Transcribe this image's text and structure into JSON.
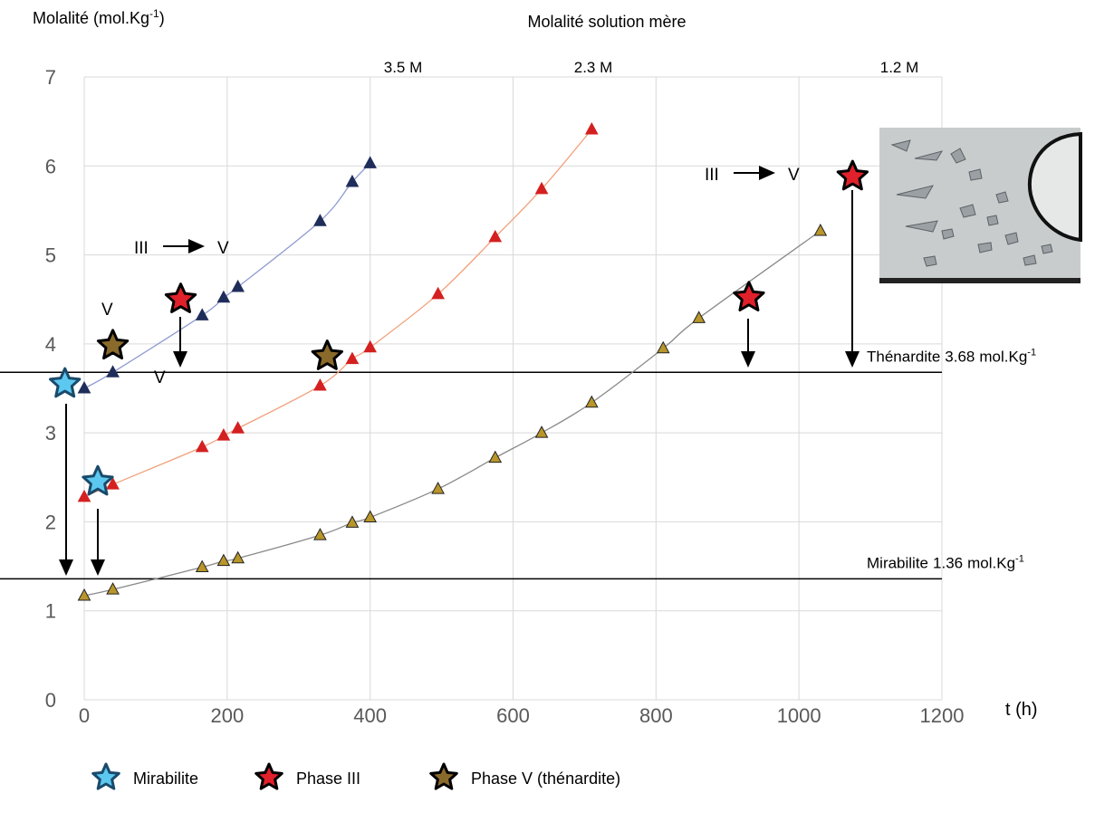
{
  "chart_data": {
    "type": "line",
    "y_label": {
      "text": "Molalité (mol.Kg",
      "sup": "-1",
      "end": ")"
    },
    "x_label": "t (h)",
    "series_title": "Molalité solution mère",
    "xlim": [
      0,
      1200
    ],
    "ylim": [
      0,
      7
    ],
    "xticks": [
      0,
      200,
      400,
      600,
      800,
      1000,
      1200
    ],
    "yticks": [
      0,
      1,
      2,
      3,
      4,
      5,
      6,
      7
    ],
    "grid": true,
    "series": [
      {
        "name": "3.5 M",
        "color": "#1f2d5a",
        "line_color": "#8f9bd0",
        "x": [
          0,
          40,
          165,
          195,
          215,
          330,
          375,
          400
        ],
        "values": [
          3.5,
          3.68,
          4.32,
          4.52,
          4.64,
          5.38,
          5.82,
          6.03
        ]
      },
      {
        "name": "2.3 M",
        "color": "#d42020",
        "line_color": "#f2a07a",
        "x": [
          0,
          40,
          165,
          195,
          215,
          330,
          375,
          400,
          495,
          575,
          640,
          710
        ],
        "values": [
          2.28,
          2.42,
          2.84,
          2.97,
          3.05,
          3.53,
          3.83,
          3.96,
          4.56,
          5.2,
          5.74,
          6.41
        ]
      },
      {
        "name": "1.2 M",
        "color": "#b8962a",
        "line_color": "#8a8a8a",
        "x": [
          0,
          40,
          165,
          195,
          215,
          330,
          375,
          400,
          495,
          575,
          640,
          710,
          810,
          860,
          1030
        ],
        "values": [
          1.17,
          1.24,
          1.49,
          1.56,
          1.59,
          1.85,
          1.99,
          2.05,
          2.37,
          2.72,
          3.0,
          3.34,
          3.95,
          4.29,
          5.27
        ]
      }
    ],
    "star_series": [
      {
        "name": "Mirabilite",
        "color": "#5cc8f0",
        "x": [
          -27,
          19
        ],
        "values": [
          3.55,
          2.45
        ]
      },
      {
        "name": "Phase III",
        "color": "#e0202a",
        "x": [
          135,
          930,
          1075
        ],
        "values": [
          4.5,
          4.52,
          5.88
        ]
      },
      {
        "name": "Phase V (thénardite)",
        "color": "#8a6a2a",
        "x": [
          40,
          340
        ],
        "values": [
          3.98,
          3.86
        ]
      }
    ],
    "reference_lines": [
      {
        "name": "Thénardite",
        "value": 3.68,
        "unit": "mol.Kg",
        "sup": "-1"
      },
      {
        "name": "Mirabilite",
        "value": 1.36,
        "unit": "mol.Kg",
        "sup": "-1"
      }
    ],
    "annotations": [
      "III",
      "V",
      "V",
      "V",
      "III",
      "V"
    ]
  }
}
